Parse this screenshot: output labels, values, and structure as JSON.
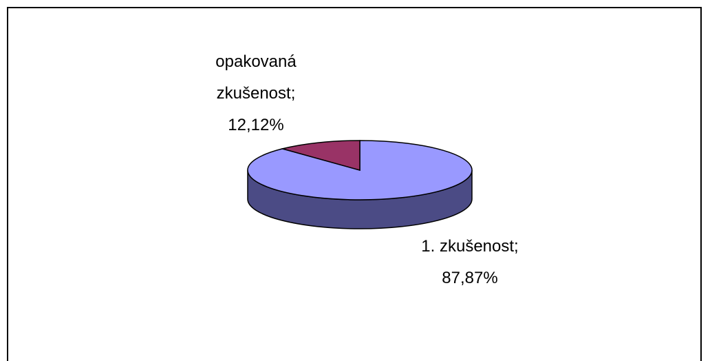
{
  "chart_data": {
    "type": "pie",
    "three_d": true,
    "categories": [
      "1. zkušenost",
      "opakovaná zkušenost"
    ],
    "values": [
      87.87,
      12.12
    ],
    "value_labels": [
      "87,87%",
      "12,12%"
    ],
    "label_separator": ";",
    "colors": [
      "#9999ff",
      "#993366"
    ],
    "side_colors": [
      "#4b4b85",
      "#5c1f3d"
    ]
  }
}
